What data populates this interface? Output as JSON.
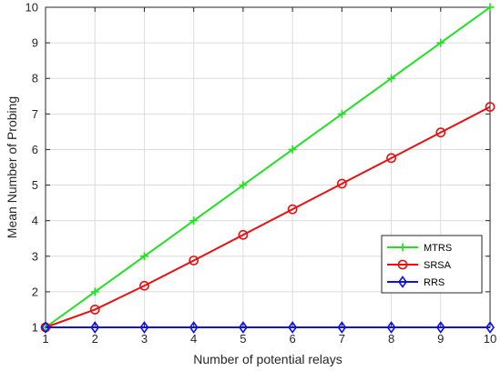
{
  "chart_data": {
    "type": "line",
    "title": "",
    "xlabel": "Number of potential relays",
    "ylabel": "Mean Number of Probing",
    "x": [
      1,
      2,
      3,
      4,
      5,
      6,
      7,
      8,
      9,
      10
    ],
    "xlim": [
      1,
      10
    ],
    "ylim": [
      1,
      10
    ],
    "xticks": [
      "1",
      "2",
      "3",
      "4",
      "5",
      "6",
      "7",
      "8",
      "9",
      "10"
    ],
    "yticks": [
      "1",
      "2",
      "3",
      "4",
      "5",
      "6",
      "7",
      "8",
      "9",
      "10"
    ],
    "grid": true,
    "legend_position": "bottom-right",
    "series": [
      {
        "name": "MTRS",
        "color": "#22e022",
        "marker": "plus",
        "values": [
          1,
          2,
          3,
          4,
          5,
          6,
          7,
          8,
          9,
          10
        ]
      },
      {
        "name": "SRSA",
        "color": "#e81010",
        "marker": "circle",
        "values": [
          1,
          1.5,
          2.17,
          2.88,
          3.6,
          4.32,
          5.04,
          5.76,
          6.48,
          7.2
        ]
      },
      {
        "name": "RRS",
        "color": "#1010e8",
        "marker": "diamond",
        "values": [
          1,
          1,
          1,
          1,
          1,
          1,
          1,
          1,
          1,
          1
        ]
      }
    ]
  }
}
